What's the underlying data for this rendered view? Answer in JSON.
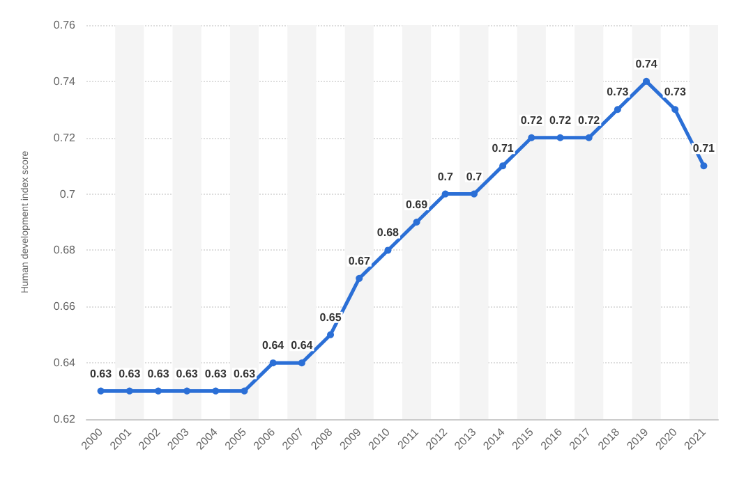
{
  "chart_data": {
    "type": "line",
    "ylabel": "Human development index score",
    "categories": [
      "2000",
      "2001",
      "2002",
      "2003",
      "2004",
      "2005",
      "2006",
      "2007",
      "2008",
      "2009",
      "2010",
      "2011",
      "2012",
      "2013",
      "2014",
      "2015",
      "2016",
      "2017",
      "2018",
      "2019",
      "2020",
      "2021"
    ],
    "series": [
      {
        "color": "#2b6fd6",
        "values": [
          0.63,
          0.63,
          0.63,
          0.63,
          0.63,
          0.63,
          0.64,
          0.64,
          0.65,
          0.67,
          0.68,
          0.69,
          0.7,
          0.7,
          0.71,
          0.72,
          0.72,
          0.72,
          0.73,
          0.74,
          0.73,
          0.71
        ]
      }
    ],
    "ylim": [
      0.62,
      0.76
    ],
    "yticks": [
      0.62,
      0.64,
      0.66,
      0.68,
      0.7,
      0.72,
      0.74,
      0.76
    ],
    "grid": "y",
    "data_labels": true,
    "marker": "circle",
    "line_style": "solid"
  }
}
